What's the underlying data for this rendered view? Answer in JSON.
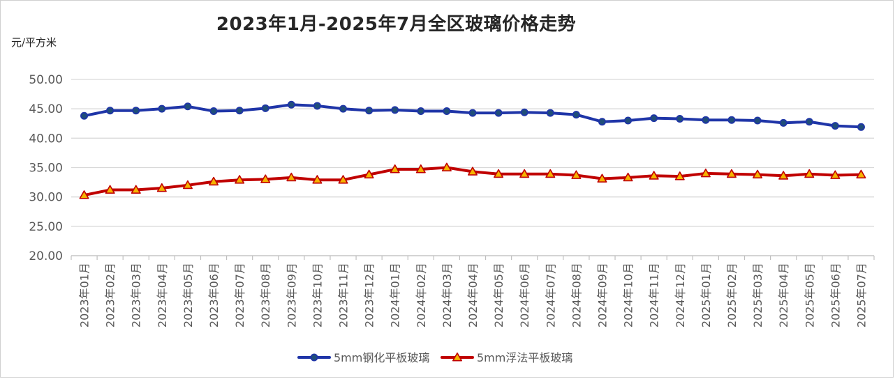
{
  "chart_data": {
    "type": "line",
    "title": "2023年1月-2025年7月全区玻璃价格走势",
    "ylabel": "元/平方米",
    "xlabel": "",
    "ylim": [
      20,
      50
    ],
    "yticks": [
      "20.00",
      "25.00",
      "30.00",
      "35.00",
      "40.00",
      "45.00",
      "50.00"
    ],
    "grid": "horizontal",
    "legend_position": "bottom",
    "categories": [
      "2023年01月",
      "2023年02月",
      "2023年03月",
      "2023年04月",
      "2023年05月",
      "2023年06月",
      "2023年07月",
      "2023年08月",
      "2023年09月",
      "2023年10月",
      "2023年11月",
      "2023年12月",
      "2024年01月",
      "2024年02月",
      "2024年03月",
      "2024年04月",
      "2024年05月",
      "2024年06月",
      "2024年07月",
      "2024年08月",
      "2024年09月",
      "2024年10月",
      "2024年11月",
      "2024年12月",
      "2025年01月",
      "2025年02月",
      "2025年03月",
      "2025年04月",
      "2025年05月",
      "2025年06月",
      "2025年07月"
    ],
    "series": [
      {
        "name": "5mm钢化平板玻璃",
        "color": "#1f35a8",
        "marker": "circle",
        "marker_fill": "#1f4e79",
        "values": [
          43.8,
          44.7,
          44.7,
          45.0,
          45.4,
          44.6,
          44.7,
          45.1,
          45.7,
          45.5,
          45.0,
          44.7,
          44.8,
          44.6,
          44.6,
          44.3,
          44.3,
          44.4,
          44.3,
          44.0,
          42.8,
          43.0,
          43.4,
          43.3,
          43.1,
          43.1,
          43.0,
          42.6,
          42.8,
          42.1,
          41.9
        ]
      },
      {
        "name": "5mm浮法平板玻璃",
        "color": "#c00000",
        "marker": "triangle",
        "marker_fill": "#f5b400",
        "values": [
          30.3,
          31.2,
          31.2,
          31.5,
          32.0,
          32.6,
          32.9,
          33.0,
          33.3,
          32.9,
          32.9,
          33.8,
          34.7,
          34.7,
          35.0,
          34.3,
          33.9,
          33.9,
          33.9,
          33.7,
          33.1,
          33.3,
          33.6,
          33.5,
          34.0,
          33.9,
          33.8,
          33.6,
          33.9,
          33.7,
          33.8
        ]
      }
    ]
  }
}
